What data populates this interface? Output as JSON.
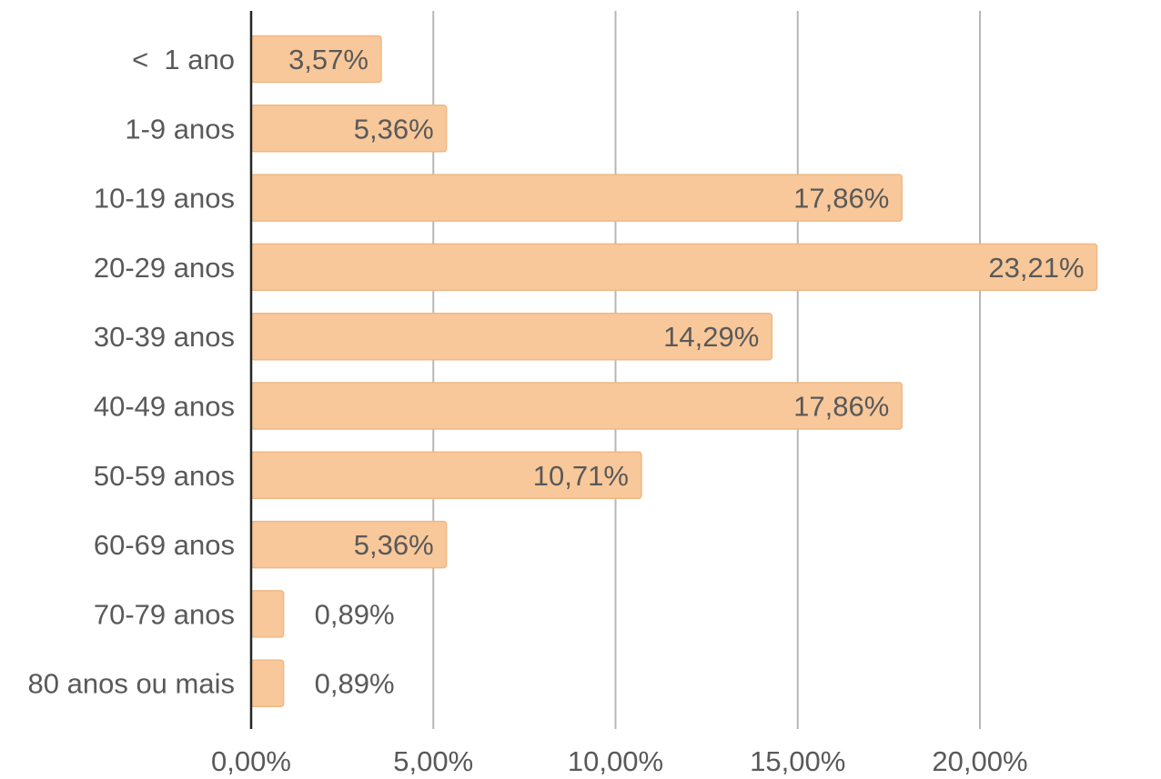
{
  "chart_data": {
    "type": "bar",
    "orientation": "horizontal",
    "categories": [
      "<  1 ano",
      "1-9 anos",
      "10-19 anos",
      "20-29 anos",
      "30-39 anos",
      "40-49 anos",
      "50-59 anos",
      "60-69 anos",
      "70-79 anos",
      "80 anos ou mais"
    ],
    "values": [
      3.57,
      5.36,
      17.86,
      23.21,
      14.29,
      17.86,
      10.71,
      5.36,
      0.89,
      0.89
    ],
    "value_labels": [
      "3,57%",
      "5,36%",
      "17,86%",
      "23,21%",
      "14,29%",
      "17,86%",
      "10,71%",
      "5,36%",
      "0,89%",
      "0,89%"
    ],
    "x_ticks": [
      0,
      5,
      10,
      15,
      20
    ],
    "x_tick_labels": [
      "0,00%",
      "5,00%",
      "10,00%",
      "15,00%",
      "20,00%"
    ],
    "xlim": [
      0,
      25
    ],
    "title": "",
    "xlabel": "",
    "ylabel": "",
    "grid": true,
    "legend": "none",
    "colors": {
      "bar_fill": "#f8c89a",
      "bar_stroke": "#eeb885",
      "grid": "#b7b7b7",
      "axis": "#262626",
      "text": "#595959"
    }
  }
}
